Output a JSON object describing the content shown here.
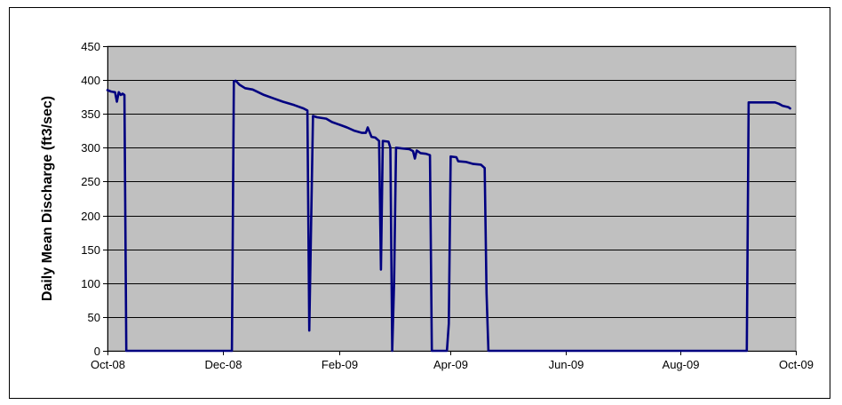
{
  "colors": {
    "plot_background": "#c0c0c0",
    "series_line": "#000080",
    "gridline": "#000000"
  },
  "chart_data": {
    "type": "line",
    "title": "",
    "xlabel": "",
    "ylabel": "Daily Mean Discharge (ft3/sec)",
    "xlim": [
      "2008-10-01",
      "2009-10-01"
    ],
    "ylim": [
      0,
      450
    ],
    "y_ticks": [
      0,
      50,
      100,
      150,
      200,
      250,
      300,
      350,
      400,
      450
    ],
    "x_ticks": [
      {
        "date": "2008-10-01",
        "label": "Oct-08"
      },
      {
        "date": "2008-12-01",
        "label": "Dec-08"
      },
      {
        "date": "2009-02-01",
        "label": "Feb-09"
      },
      {
        "date": "2009-04-01",
        "label": "Apr-09"
      },
      {
        "date": "2009-06-01",
        "label": "Jun-09"
      },
      {
        "date": "2009-08-01",
        "label": "Aug-09"
      },
      {
        "date": "2009-10-01",
        "label": "Oct-09"
      }
    ],
    "grid": {
      "horizontal": true,
      "vertical": false
    },
    "legend": "none",
    "series": [
      {
        "points": [
          [
            "2008-10-01",
            385
          ],
          [
            "2008-10-03",
            383
          ],
          [
            "2008-10-05",
            382
          ],
          [
            "2008-10-06",
            368
          ],
          [
            "2008-10-07",
            382
          ],
          [
            "2008-10-08",
            378
          ],
          [
            "2008-10-09",
            380
          ],
          [
            "2008-10-10",
            378
          ],
          [
            "2008-10-11",
            0
          ],
          [
            "2008-12-06",
            0
          ],
          [
            "2008-12-07",
            398
          ],
          [
            "2008-12-08",
            399
          ],
          [
            "2008-12-10",
            393
          ],
          [
            "2008-12-13",
            388
          ],
          [
            "2008-12-17",
            386
          ],
          [
            "2008-12-23",
            378
          ],
          [
            "2008-12-28",
            373
          ],
          [
            "2009-01-02",
            368
          ],
          [
            "2009-01-08",
            363
          ],
          [
            "2009-01-13",
            358
          ],
          [
            "2009-01-15",
            355
          ],
          [
            "2009-01-16",
            30
          ],
          [
            "2009-01-18",
            347
          ],
          [
            "2009-01-20",
            345
          ],
          [
            "2009-01-25",
            343
          ],
          [
            "2009-01-28",
            338
          ],
          [
            "2009-02-01",
            334
          ],
          [
            "2009-02-05",
            330
          ],
          [
            "2009-02-09",
            325
          ],
          [
            "2009-02-13",
            322
          ],
          [
            "2009-02-15",
            322
          ],
          [
            "2009-02-16",
            330
          ],
          [
            "2009-02-18",
            316
          ],
          [
            "2009-02-20",
            315
          ],
          [
            "2009-02-22",
            310
          ],
          [
            "2009-02-23",
            120
          ],
          [
            "2009-02-24",
            310
          ],
          [
            "2009-02-27",
            309
          ],
          [
            "2009-02-28",
            300
          ],
          [
            "2009-03-01",
            0
          ],
          [
            "2009-03-02",
            100
          ],
          [
            "2009-03-03",
            300
          ],
          [
            "2009-03-06",
            299
          ],
          [
            "2009-03-10",
            298
          ],
          [
            "2009-03-12",
            295
          ],
          [
            "2009-03-13",
            284
          ],
          [
            "2009-03-14",
            296
          ],
          [
            "2009-03-16",
            292
          ],
          [
            "2009-03-19",
            291
          ],
          [
            "2009-03-21",
            289
          ],
          [
            "2009-03-22",
            0
          ],
          [
            "2009-03-30",
            0
          ],
          [
            "2009-03-31",
            40
          ],
          [
            "2009-04-01",
            287
          ],
          [
            "2009-04-04",
            286
          ],
          [
            "2009-04-05",
            280
          ],
          [
            "2009-04-09",
            279
          ],
          [
            "2009-04-13",
            276
          ],
          [
            "2009-04-17",
            275
          ],
          [
            "2009-04-19",
            270
          ],
          [
            "2009-04-20",
            85
          ],
          [
            "2009-04-21",
            0
          ],
          [
            "2009-09-05",
            0
          ],
          [
            "2009-09-06",
            367
          ],
          [
            "2009-09-12",
            367
          ],
          [
            "2009-09-20",
            367
          ],
          [
            "2009-09-22",
            365
          ],
          [
            "2009-09-24",
            362
          ],
          [
            "2009-09-27",
            360
          ],
          [
            "2009-09-28",
            358
          ]
        ]
      }
    ]
  }
}
